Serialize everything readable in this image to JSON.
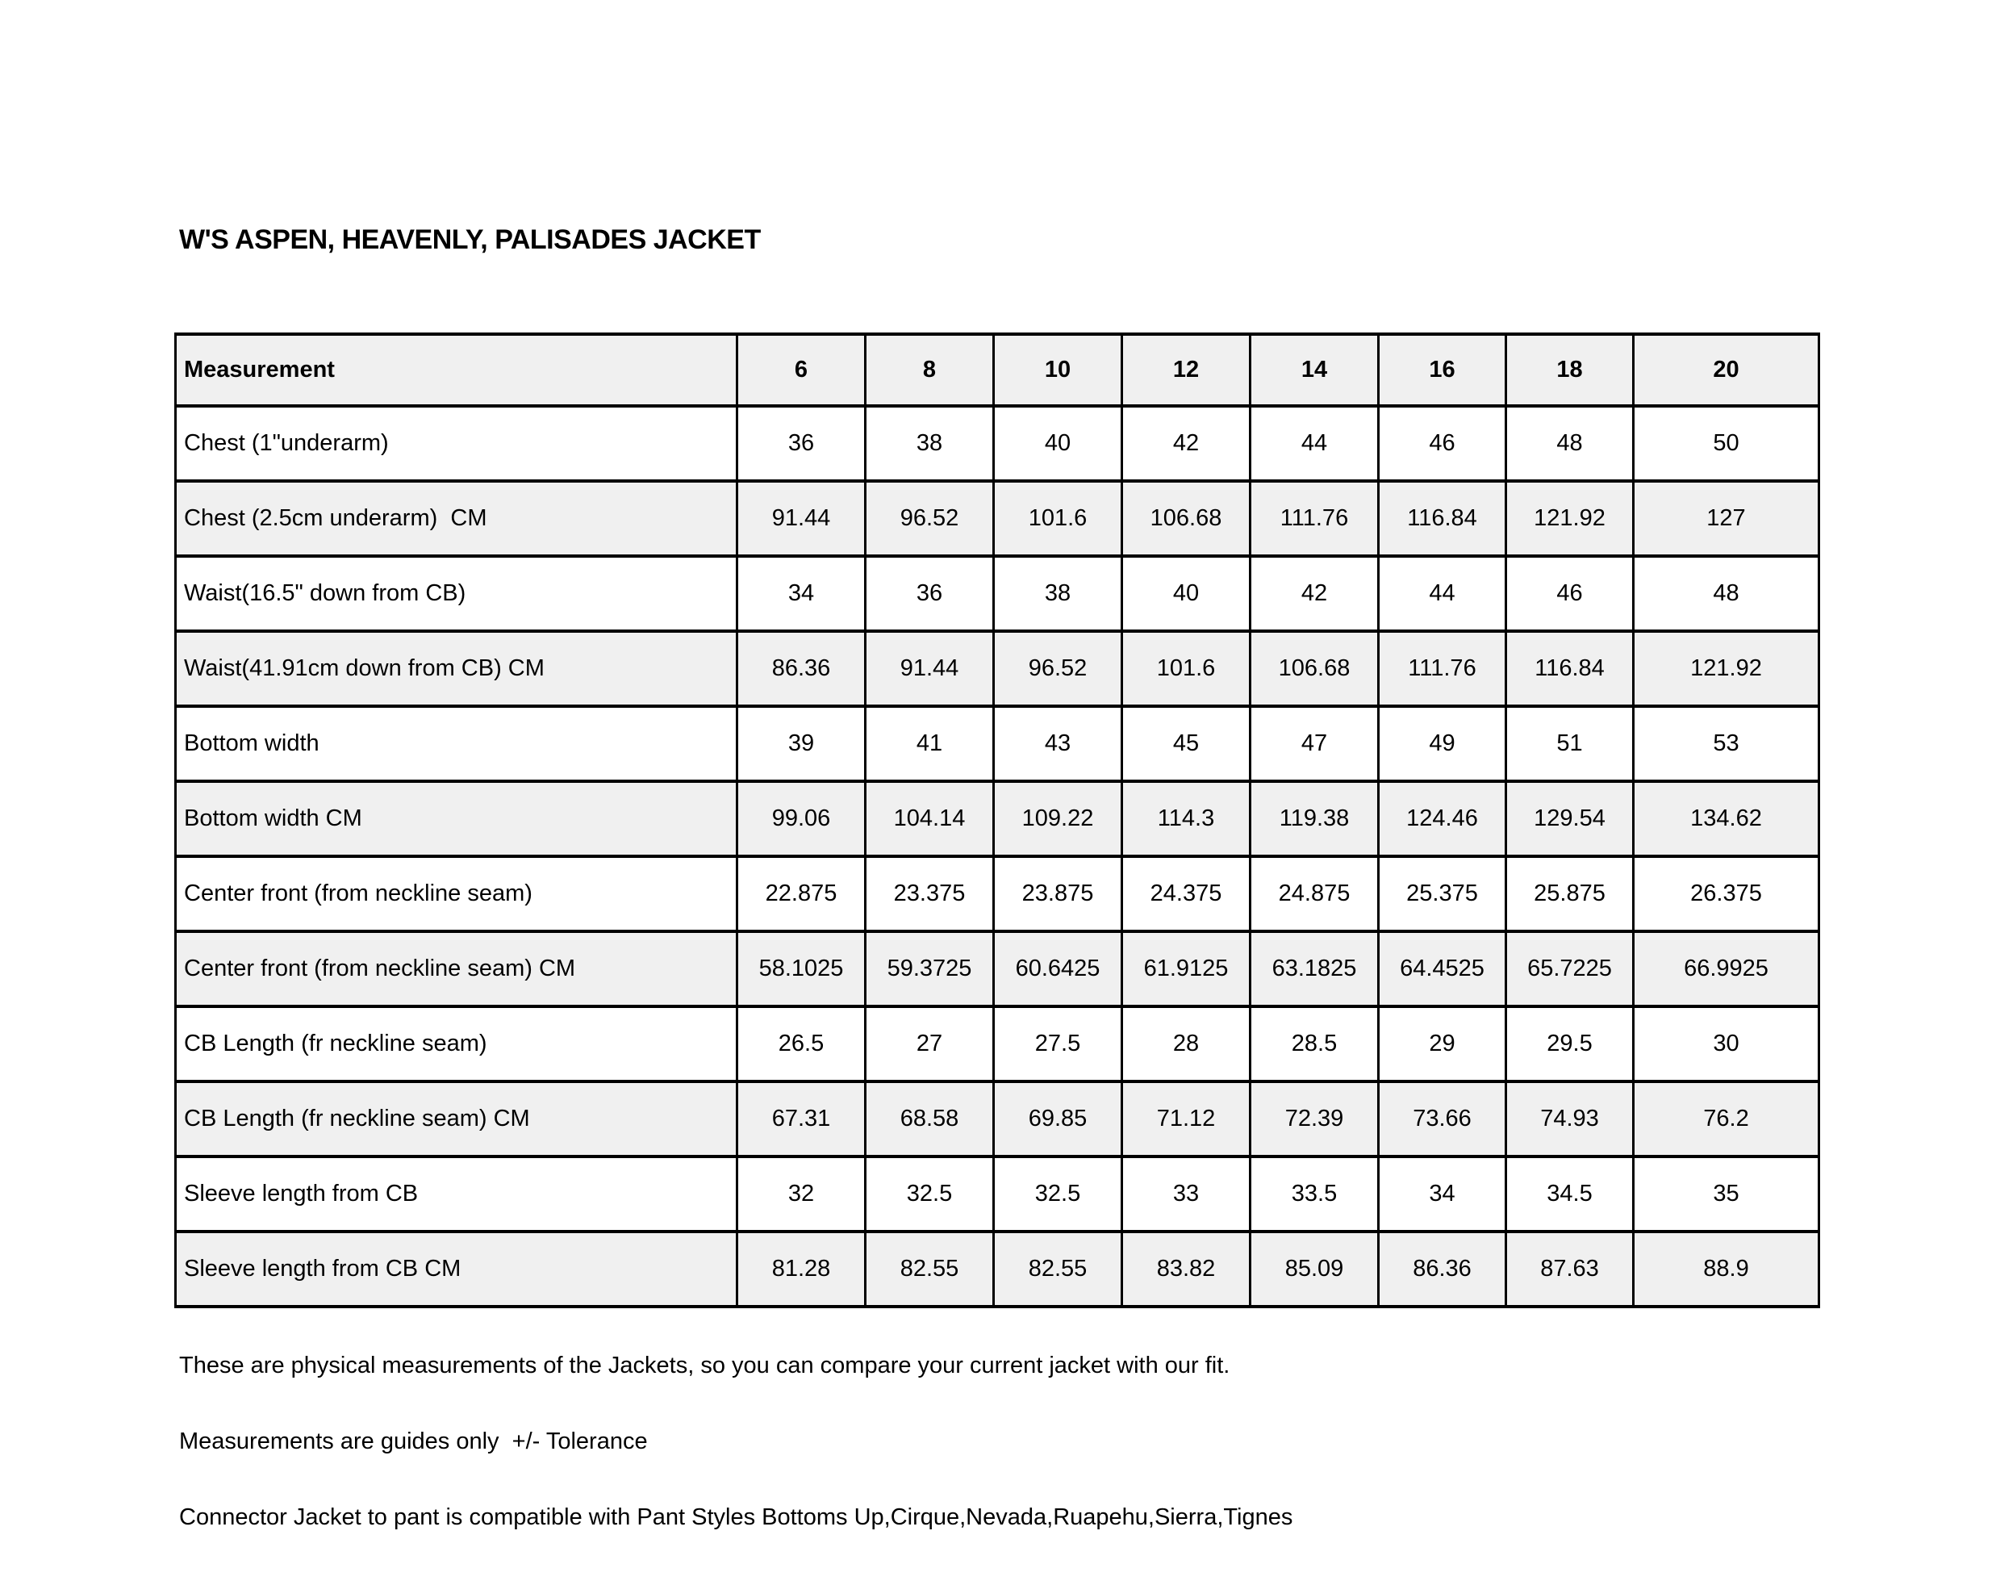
{
  "title": "W'S ASPEN, HEAVENLY, PALISADES JACKET",
  "colors": {
    "row_stripe": "#f0f0f0",
    "border": "#000000",
    "background": "#ffffff"
  },
  "table": {
    "header": [
      "Measurement",
      "6",
      "8",
      "10",
      "12",
      "14",
      "16",
      "18",
      "20"
    ],
    "rows": [
      {
        "label": "Chest (1\"underarm)",
        "values": [
          "36",
          "38",
          "40",
          "42",
          "44",
          "46",
          "48",
          "50"
        ]
      },
      {
        "label": "Chest (2.5cm underarm)  CM",
        "values": [
          "91.44",
          "96.52",
          "101.6",
          "106.68",
          "111.76",
          "116.84",
          "121.92",
          "127"
        ]
      },
      {
        "label": "Waist(16.5\" down from CB)",
        "values": [
          "34",
          "36",
          "38",
          "40",
          "42",
          "44",
          "46",
          "48"
        ]
      },
      {
        "label": "Waist(41.91cm down from CB) CM",
        "values": [
          "86.36",
          "91.44",
          "96.52",
          "101.6",
          "106.68",
          "111.76",
          "116.84",
          "121.92"
        ]
      },
      {
        "label": "Bottom width",
        "values": [
          "39",
          "41",
          "43",
          "45",
          "47",
          "49",
          "51",
          "53"
        ]
      },
      {
        "label": "Bottom width CM",
        "values": [
          "99.06",
          "104.14",
          "109.22",
          "114.3",
          "119.38",
          "124.46",
          "129.54",
          "134.62"
        ]
      },
      {
        "label": "Center front (from neckline seam)",
        "values": [
          "22.875",
          "23.375",
          "23.875",
          "24.375",
          "24.875",
          "25.375",
          "25.875",
          "26.375"
        ]
      },
      {
        "label": "Center front (from neckline seam) CM",
        "values": [
          "58.1025",
          "59.3725",
          "60.6425",
          "61.9125",
          "63.1825",
          "64.4525",
          "65.7225",
          "66.9925"
        ]
      },
      {
        "label": "CB Length (fr neckline seam)",
        "values": [
          "26.5",
          "27",
          "27.5",
          "28",
          "28.5",
          "29",
          "29.5",
          "30"
        ]
      },
      {
        "label": "CB Length (fr neckline seam) CM",
        "values": [
          "67.31",
          "68.58",
          "69.85",
          "71.12",
          "72.39",
          "73.66",
          "74.93",
          "76.2"
        ]
      },
      {
        "label": "Sleeve length from CB",
        "values": [
          "32",
          "32.5",
          "32.5",
          "33",
          "33.5",
          "34",
          "34.5",
          "35"
        ]
      },
      {
        "label": "Sleeve length from CB CM",
        "values": [
          "81.28",
          "82.55",
          "82.55",
          "83.82",
          "85.09",
          "86.36",
          "87.63",
          "88.9"
        ]
      }
    ]
  },
  "notes": [
    "These are physical measurements of the Jackets, so you can compare your current jacket with our fit.",
    "Measurements are guides only  +/- Tolerance",
    "Connector Jacket to pant is compatible with Pant Styles Bottoms Up,Cirque,Nevada,Ruapehu,Sierra,Tignes"
  ]
}
